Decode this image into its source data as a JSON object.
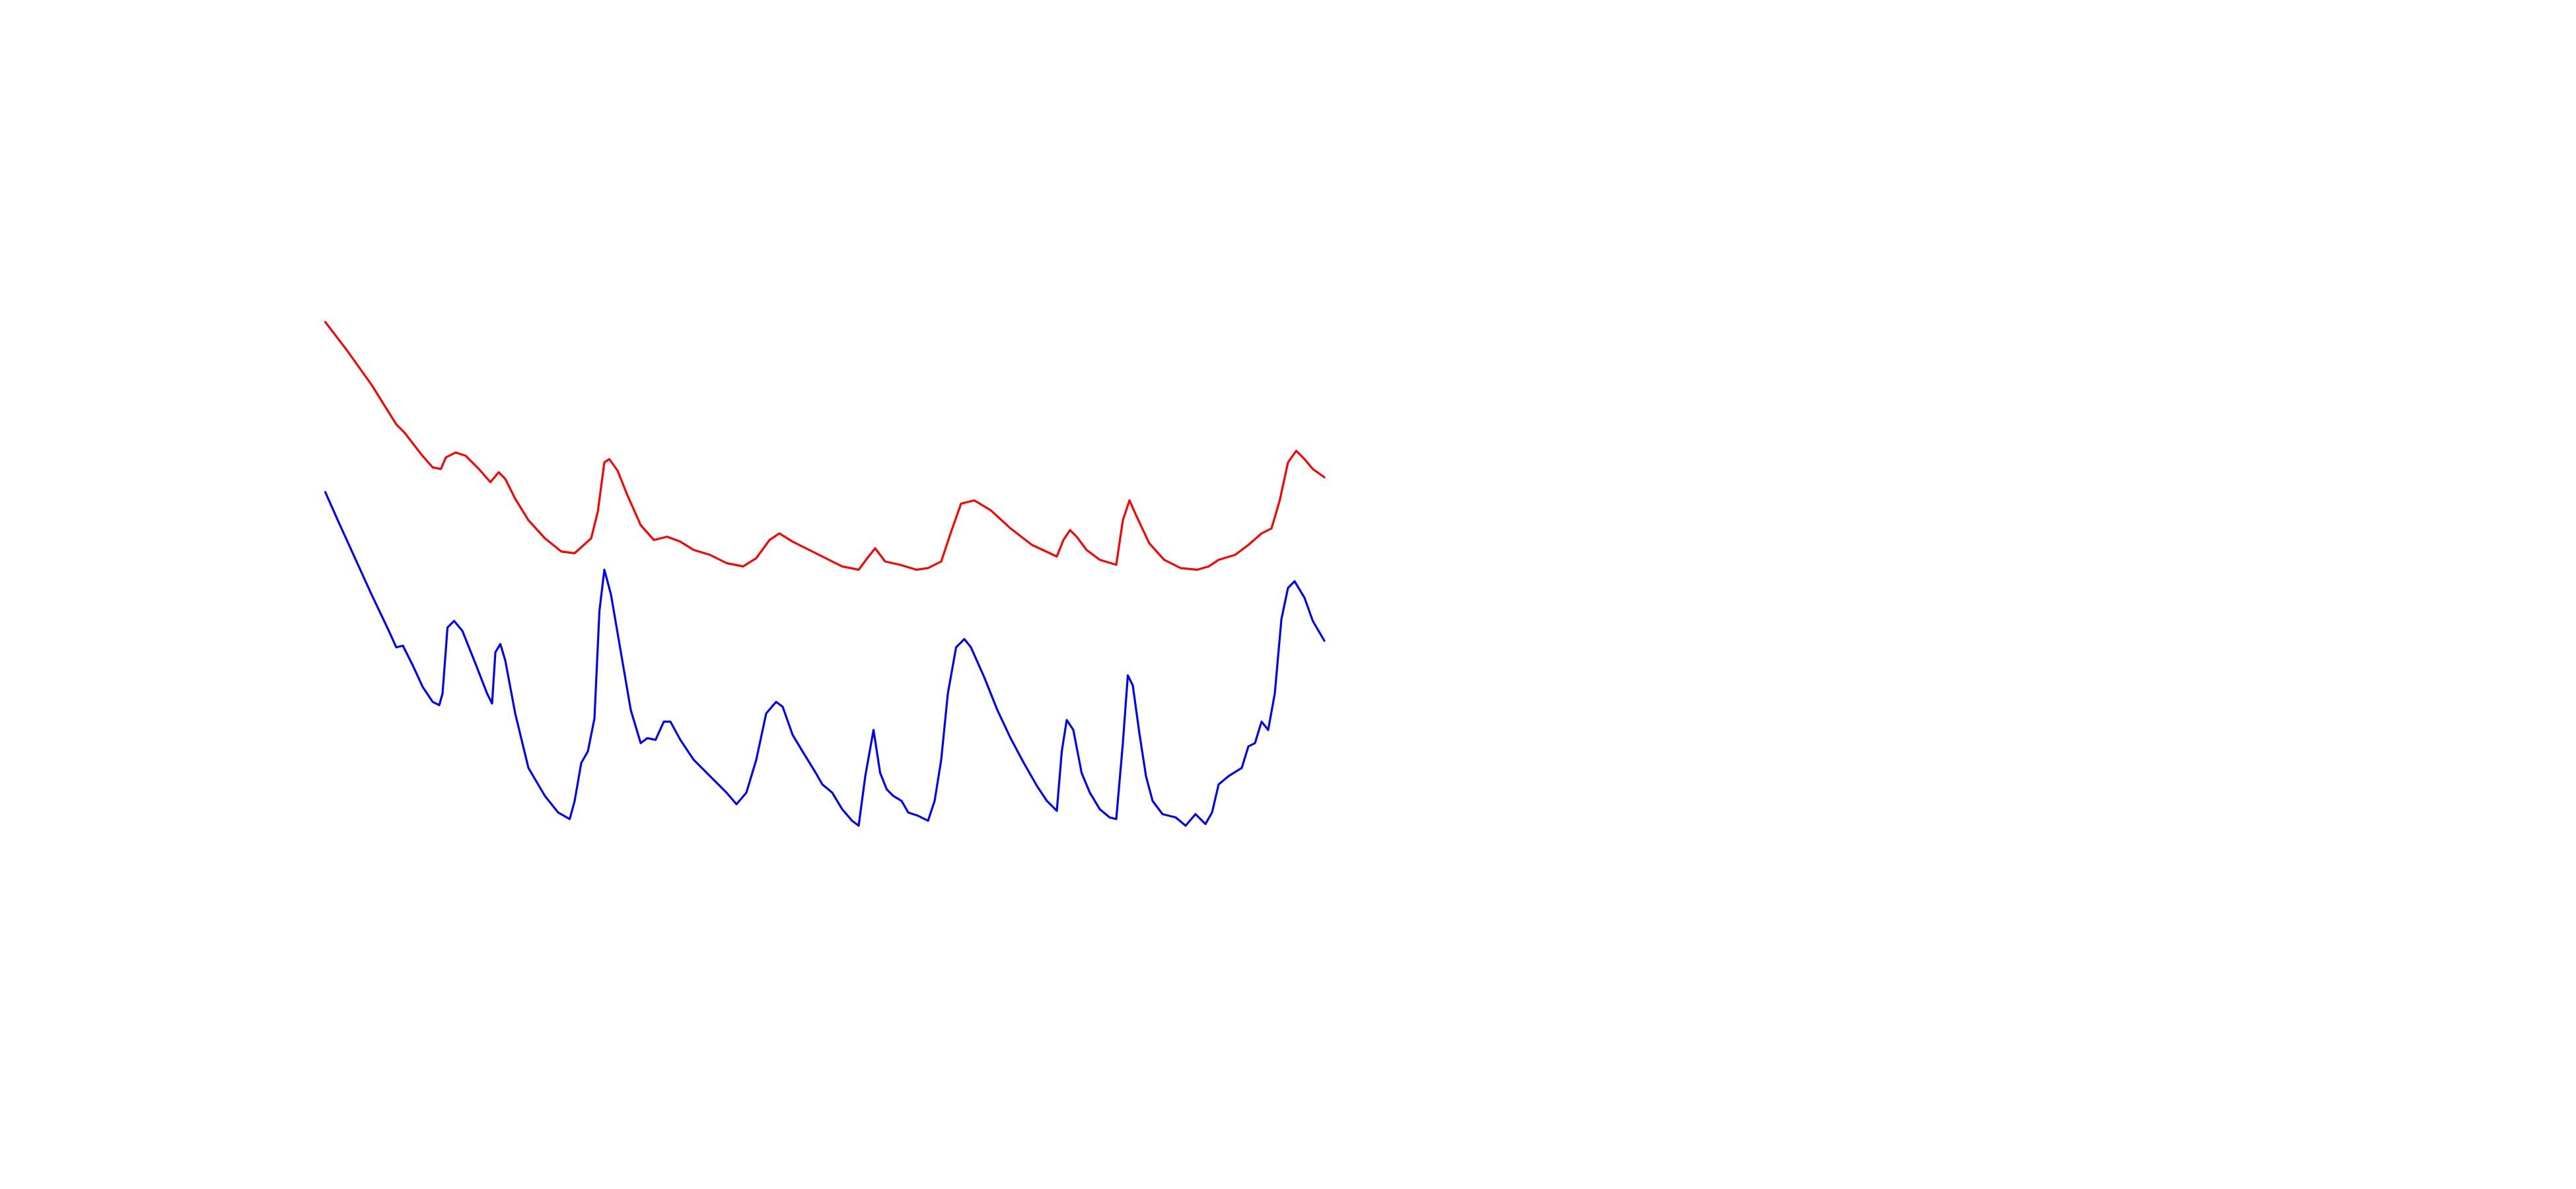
{
  "chart_data": {
    "type": "line",
    "xlim": [
      0,
      1560
    ],
    "ylim": [
      0,
      720
    ],
    "series": [
      {
        "color": "#ff0000",
        "x": [
          197,
          210,
          225,
          240,
          245,
          255,
          262,
          267,
          270,
          276,
          282,
          290,
          297,
          302,
          306,
          312,
          320,
          330,
          340,
          348,
          358,
          362,
          366,
          369,
          374,
          380,
          388,
          396,
          404,
          412,
          420,
          430,
          440,
          450,
          458,
          466,
          472,
          480,
          490,
          500,
          510,
          520,
          526,
          530,
          536,
          545,
          555,
          562,
          570,
          576,
          582,
          590,
          600,
          612,
          625,
          640,
          644,
          648,
          652,
          658,
          666,
          676,
          680,
          684,
          688,
          696,
          705,
          715,
          725,
          732,
          738,
          748,
          756,
          764,
          770,
          775,
          780,
          785,
          790,
          795,
          802
        ],
        "values": [
          525,
          508,
          487,
          463,
          458,
          445,
          437,
          436,
          443,
          446,
          444,
          436,
          428,
          434,
          430,
          418,
          405,
          394,
          386,
          385,
          394,
          410,
          440,
          442,
          435,
          420,
          402,
          393,
          395,
          392,
          387,
          384,
          379,
          377,
          382,
          393,
          397,
          392,
          387,
          382,
          377,
          375,
          383,
          388,
          380,
          378,
          375,
          376,
          380,
          398,
          415,
          417,
          411,
          400,
          390,
          383,
          393,
          399,
          395,
          387,
          381,
          378,
          405,
          417,
          408,
          391,
          381,
          376,
          375,
          377,
          381,
          384,
          390,
          397,
          400,
          417,
          440,
          447,
          442,
          436,
          431
        ]
      },
      {
        "color": "#0000ff",
        "x": [
          197,
          205,
          215,
          225,
          235,
          240,
          244,
          250,
          256,
          262,
          266,
          268,
          271,
          275,
          280,
          288,
          295,
          298,
          300,
          303,
          306,
          312,
          320,
          330,
          338,
          345,
          348,
          352,
          356,
          360,
          363,
          366,
          370,
          376,
          382,
          388,
          392,
          397,
          402,
          406,
          412,
          420,
          430,
          440,
          446,
          452,
          458,
          464,
          470,
          474,
          480,
          486,
          494,
          498,
          504,
          510,
          516,
          520,
          524,
          529,
          533,
          537,
          541,
          546,
          550,
          556,
          562,
          566,
          570,
          574,
          579,
          584,
          588,
          596,
          604,
          612,
          620,
          628,
          634,
          640,
          643,
          646,
          650,
          655,
          660,
          666,
          672,
          676,
          680,
          683,
          686,
          690,
          694,
          698,
          704,
          712,
          718,
          724,
          730,
          734,
          738,
          744,
          752,
          756,
          760,
          764,
          768,
          772,
          776,
          780,
          784,
          790,
          795,
          802
        ],
        "values": [
          422,
          404,
          382,
          360,
          339,
          328,
          329,
          317,
          304,
          295,
          293,
          300,
          340,
          344,
          338,
          318,
          300,
          294,
          325,
          330,
          320,
          288,
          255,
          238,
          228,
          224,
          235,
          258,
          265,
          285,
          350,
          375,
          360,
          325,
          290,
          270,
          273,
          272,
          283,
          283,
          272,
          260,
          250,
          240,
          233,
          240,
          260,
          288,
          295,
          292,
          275,
          265,
          252,
          245,
          240,
          230,
          223,
          220,
          250,
          278,
          252,
          242,
          238,
          235,
          228,
          226,
          223,
          235,
          260,
          300,
          328,
          333,
          328,
          310,
          290,
          273,
          258,
          244,
          235,
          229,
          265,
          284,
          278,
          252,
          240,
          230,
          225,
          224,
          270,
          311,
          305,
          276,
          250,
          235,
          227,
          225,
          220,
          227,
          221,
          228,
          245,
          250,
          255,
          268,
          270,
          283,
          278,
          300,
          345,
          364,
          368,
          358,
          344,
          332
        ]
      }
    ]
  }
}
